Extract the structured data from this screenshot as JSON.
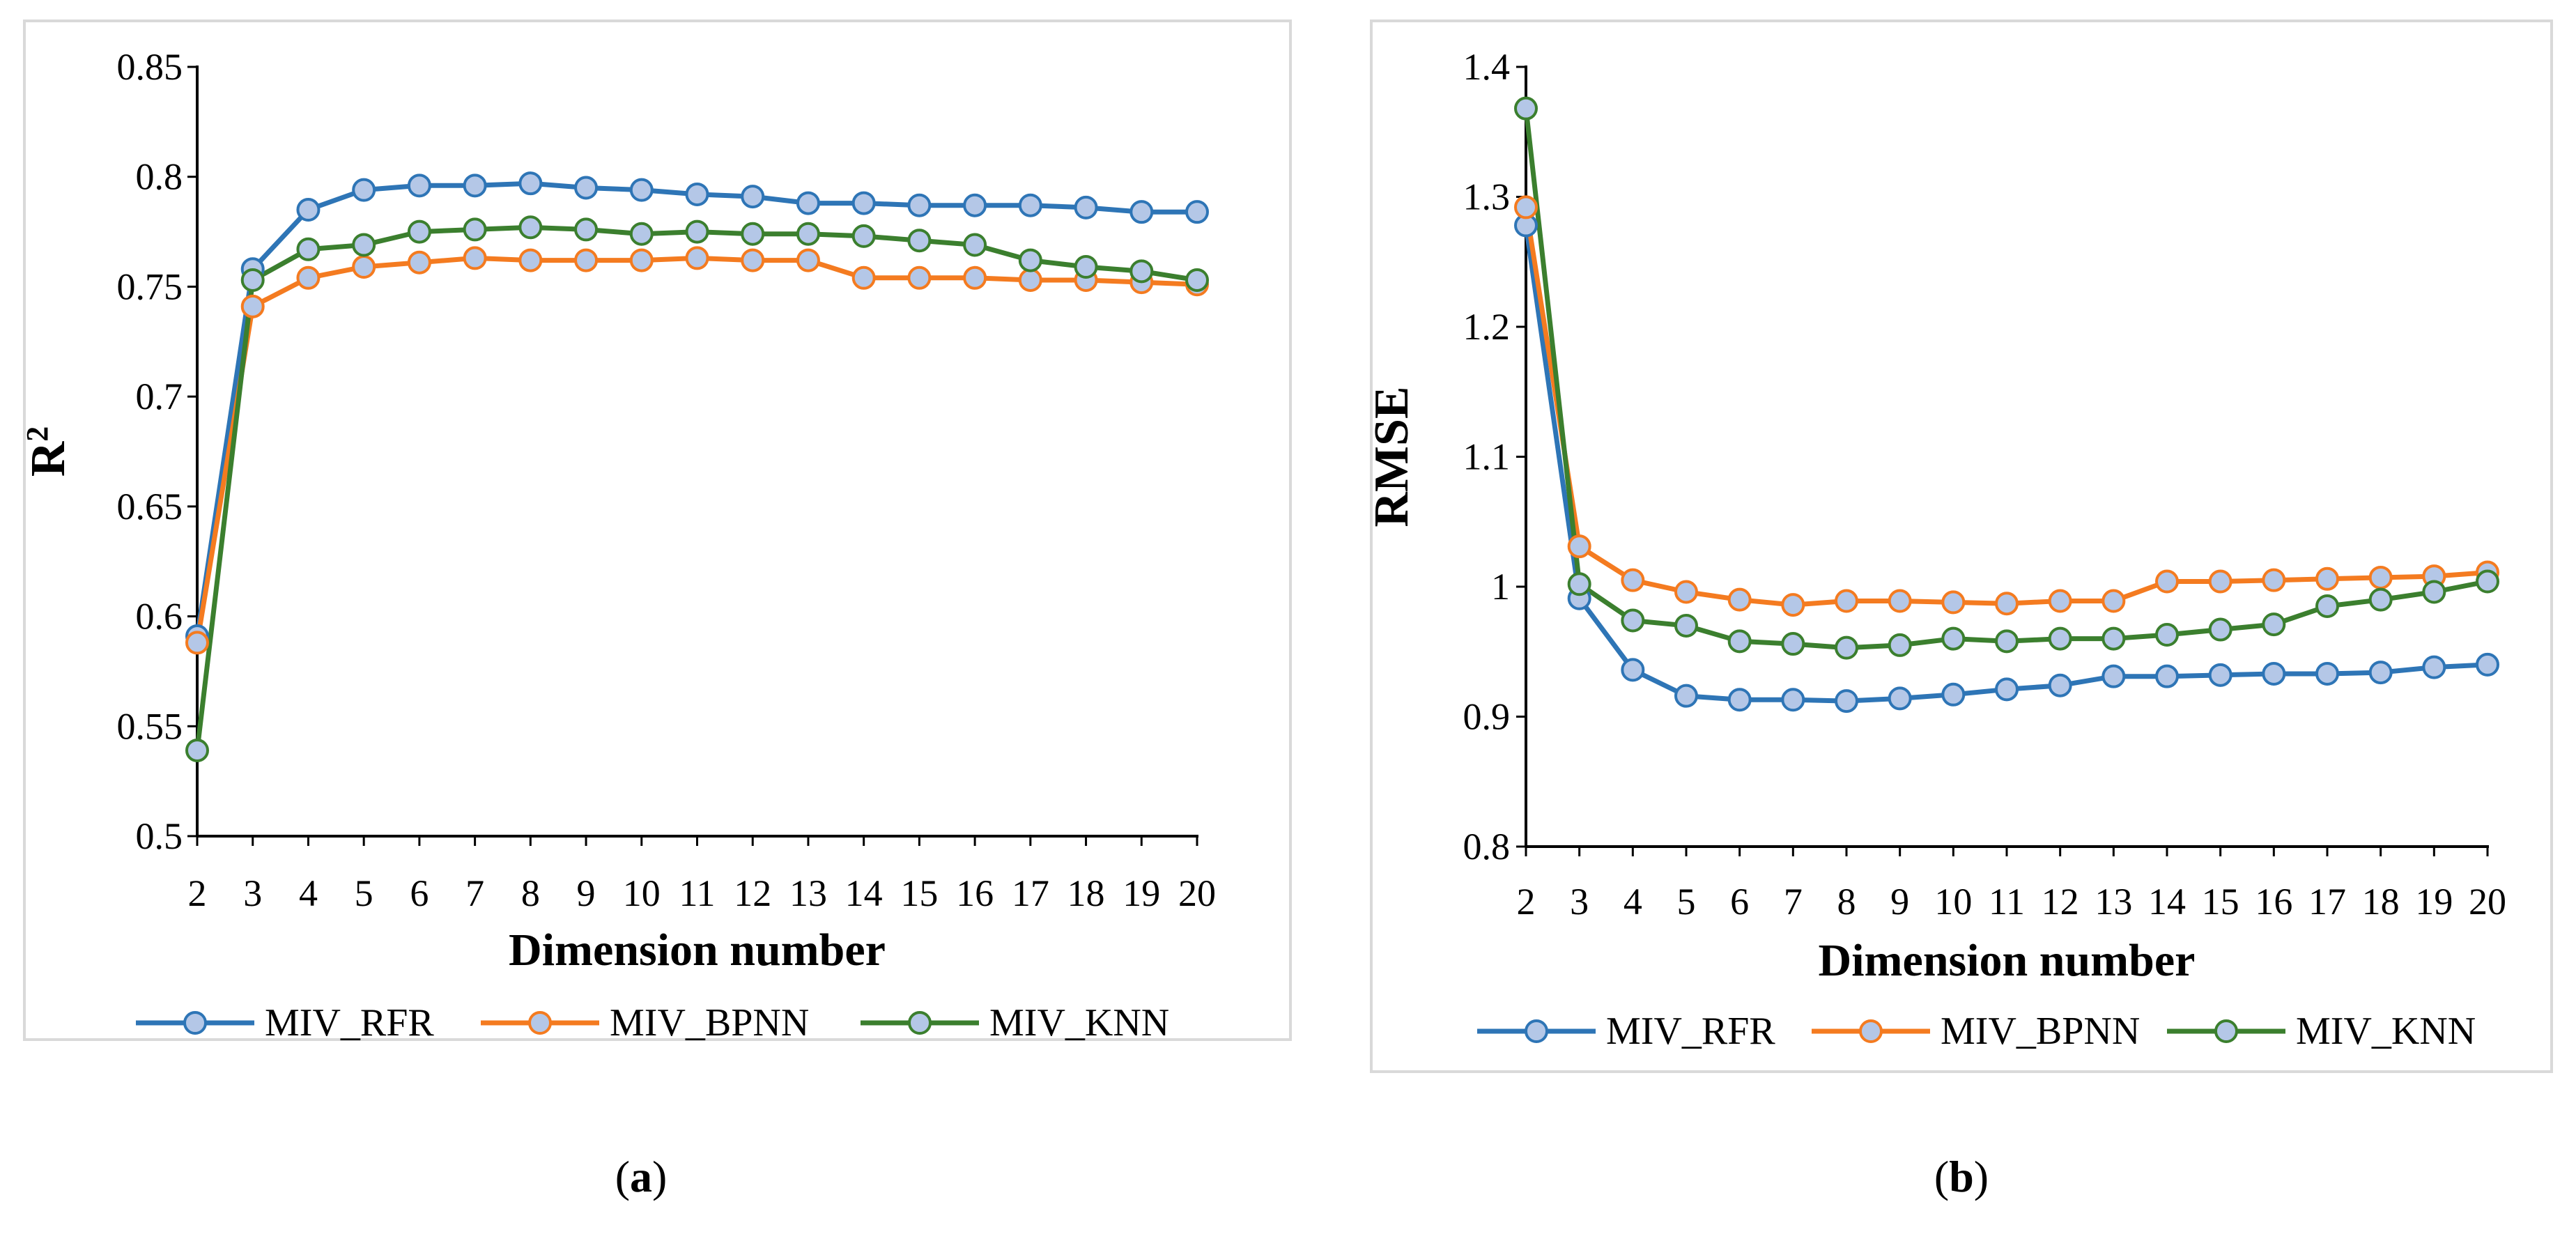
{
  "colors": {
    "rfr": "#2E75B6",
    "bpnn": "#F47B20",
    "knn": "#3B7F2E",
    "marker_fill": "#B4C7E7",
    "frame": "#D9D9D9",
    "axis": "#000000"
  },
  "chart_data": [
    {
      "type": "line",
      "panel_label": "(a)",
      "caption_letter": "a",
      "xlabel": "Dimension number",
      "ylabel_base": "R",
      "ylabel_sup": "2",
      "x": [
        2,
        3,
        4,
        5,
        6,
        7,
        8,
        9,
        10,
        11,
        12,
        13,
        14,
        15,
        16,
        17,
        18,
        19,
        20
      ],
      "ylim": [
        0.5,
        0.85
      ],
      "yticks": [
        0.5,
        0.55,
        0.6,
        0.65,
        0.7,
        0.75,
        0.8,
        0.85
      ],
      "ytick_labels": [
        "0.5",
        "0.55",
        "0.6",
        "0.65",
        "0.7",
        "0.75",
        "0.8",
        "0.85"
      ],
      "legend_position": "bottom",
      "series": [
        {
          "name": "MIV_RFR",
          "values": [
            0.591,
            0.758,
            0.785,
            0.794,
            0.796,
            0.796,
            0.797,
            0.795,
            0.794,
            0.792,
            0.791,
            0.788,
            0.788,
            0.787,
            0.787,
            0.787,
            0.786,
            0.784,
            0.784
          ]
        },
        {
          "name": "MIV_BPNN",
          "values": [
            0.588,
            0.741,
            0.754,
            0.759,
            0.761,
            0.763,
            0.762,
            0.762,
            0.762,
            0.763,
            0.762,
            0.762,
            0.754,
            0.754,
            0.754,
            0.753,
            0.753,
            0.752,
            0.751
          ]
        },
        {
          "name": "MIV_KNN",
          "values": [
            0.539,
            0.753,
            0.767,
            0.769,
            0.775,
            0.776,
            0.777,
            0.776,
            0.774,
            0.775,
            0.774,
            0.774,
            0.773,
            0.771,
            0.769,
            0.762,
            0.759,
            0.757,
            0.753
          ]
        }
      ]
    },
    {
      "type": "line",
      "panel_label": "(b)",
      "caption_letter": "b",
      "xlabel": "Dimension number",
      "ylabel_base": "RMSE",
      "ylabel_sup": "",
      "x": [
        2,
        3,
        4,
        5,
        6,
        7,
        8,
        9,
        10,
        11,
        12,
        13,
        14,
        15,
        16,
        17,
        18,
        19,
        20
      ],
      "ylim": [
        0.8,
        1.4
      ],
      "yticks": [
        0.8,
        0.9,
        1.0,
        1.1,
        1.2,
        1.3,
        1.4
      ],
      "ytick_labels": [
        "0.8",
        "0.9",
        "1",
        "1.1",
        "1.2",
        "1.3",
        "1.4"
      ],
      "legend_position": "bottom",
      "series": [
        {
          "name": "MIV_RFR",
          "values": [
            1.278,
            0.991,
            0.936,
            0.916,
            0.913,
            0.913,
            0.912,
            0.914,
            0.917,
            0.921,
            0.924,
            0.931,
            0.931,
            0.932,
            0.933,
            0.933,
            0.934,
            0.938,
            0.94
          ]
        },
        {
          "name": "MIV_BPNN",
          "values": [
            1.292,
            1.031,
            1.005,
            0.996,
            0.99,
            0.986,
            0.989,
            0.989,
            0.988,
            0.987,
            0.989,
            0.989,
            1.004,
            1.004,
            1.005,
            1.006,
            1.007,
            1.008,
            1.011
          ]
        },
        {
          "name": "MIV_KNN",
          "values": [
            1.368,
            1.002,
            0.974,
            0.97,
            0.958,
            0.956,
            0.953,
            0.955,
            0.96,
            0.958,
            0.96,
            0.96,
            0.963,
            0.967,
            0.971,
            0.985,
            0.99,
            0.996,
            1.004
          ]
        }
      ]
    }
  ]
}
